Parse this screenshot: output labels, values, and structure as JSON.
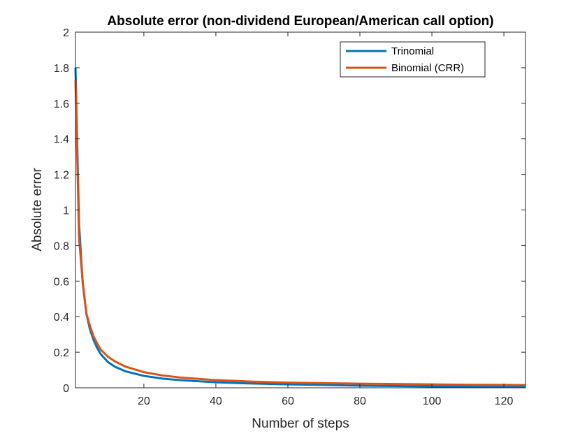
{
  "chart_data": {
    "type": "line",
    "title": "Absolute error (non-dividend European/American call option)",
    "xlabel": "Number of steps",
    "ylabel": "Absolute error",
    "xlim": [
      1,
      126
    ],
    "ylim": [
      0,
      2
    ],
    "xticks": [
      20,
      40,
      60,
      80,
      100,
      120
    ],
    "yticks": [
      0,
      0.2,
      0.4,
      0.6,
      0.8,
      1,
      1.2,
      1.4,
      1.6,
      1.8,
      2
    ],
    "grid": false,
    "legend_position": "top-right",
    "x": [
      1,
      2,
      3,
      4,
      5,
      6,
      7,
      8,
      10,
      12,
      15,
      20,
      25,
      30,
      40,
      50,
      60,
      70,
      80,
      90,
      100,
      110,
      120,
      126
    ],
    "series": [
      {
        "name": "Trinomial",
        "color": "#0072BD",
        "values": [
          1.8,
          0.92,
          0.59,
          0.42,
          0.33,
          0.27,
          0.225,
          0.19,
          0.145,
          0.118,
          0.092,
          0.067,
          0.052,
          0.043,
          0.031,
          0.024,
          0.019,
          0.016,
          0.012,
          0.01,
          0.008,
          0.006,
          0.005,
          0.004
        ]
      },
      {
        "name": "Binomial (CRR)",
        "color": "#D95319",
        "values": [
          1.73,
          0.84,
          0.6,
          0.42,
          0.35,
          0.29,
          0.25,
          0.215,
          0.175,
          0.148,
          0.118,
          0.088,
          0.07,
          0.058,
          0.043,
          0.035,
          0.029,
          0.026,
          0.023,
          0.021,
          0.019,
          0.017,
          0.016,
          0.015
        ]
      }
    ]
  }
}
